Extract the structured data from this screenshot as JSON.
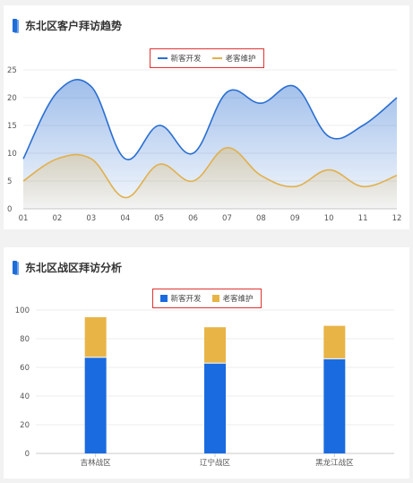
{
  "chart_data": [
    {
      "type": "area",
      "title": "东北区客户拜访趋势",
      "categories": [
        "01",
        "02",
        "03",
        "04",
        "05",
        "06",
        "07",
        "08",
        "09",
        "10",
        "11",
        "12"
      ],
      "series": [
        {
          "name": "新客开发",
          "color": "#2b6fd1",
          "values": [
            9,
            21,
            22,
            9,
            15,
            10,
            21,
            19,
            22,
            13,
            15,
            20
          ]
        },
        {
          "name": "老客维护",
          "color": "#e1b04c",
          "values": [
            5,
            9,
            9,
            2,
            8,
            5,
            11,
            6,
            4,
            7,
            4,
            6
          ]
        }
      ],
      "ylim": [
        0,
        25
      ],
      "yticks": [
        0,
        5,
        10,
        15,
        20,
        25
      ],
      "legend": "top-center",
      "grid": true
    },
    {
      "type": "bar",
      "stacked": true,
      "title": "东北区战区拜访分析",
      "categories": [
        "吉林战区",
        "辽宁战区",
        "黑龙江战区"
      ],
      "series": [
        {
          "name": "新客开发",
          "color": "#1a6be0",
          "values": [
            67,
            63,
            66
          ]
        },
        {
          "name": "老客维护",
          "color": "#e8b446",
          "values": [
            28,
            25,
            23
          ]
        }
      ],
      "ylim": [
        0,
        100
      ],
      "yticks": [
        0,
        20,
        40,
        60,
        80,
        100
      ],
      "legend": "top-center",
      "grid": true
    }
  ]
}
